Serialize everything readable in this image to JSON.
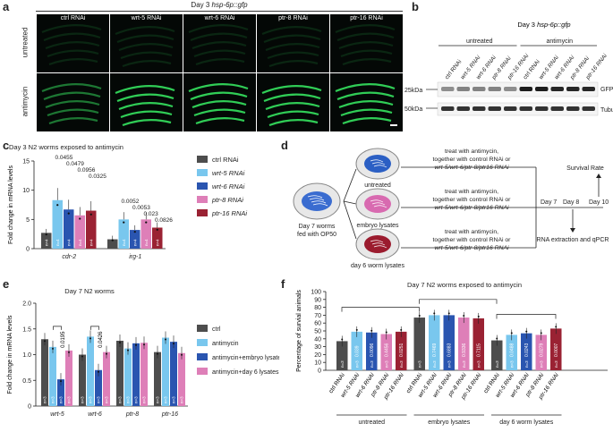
{
  "figure": {
    "panel_labels": [
      "a",
      "b",
      "c",
      "d",
      "e",
      "f"
    ]
  },
  "panel_a": {
    "title_prefix": "Day 3 ",
    "title_reporter": "hsp-6p::gfp",
    "columns": [
      "ctrl RNAi",
      "wrt-5 RNAi",
      "wrt-6 RNAi",
      "ptr-8 RNAi",
      "ptr-16 RNAi"
    ],
    "rows": [
      "untreated",
      "antimycin"
    ],
    "image_color": "#3cff6a"
  },
  "panel_b": {
    "title_prefix": "Day 3 ",
    "title_reporter": "hsp-6p::gfp",
    "groups": [
      "untreated",
      "antimycin"
    ],
    "lanes": [
      "ctrl RNAi",
      "wrt-5 RNAi",
      "wrt-6 RNAi",
      "ptr-8 RNAi",
      "ptr-16 RNAi",
      "ctrl RNAi",
      "wrt-5 RNAi",
      "wrt-6 RNAi",
      "ptr-8 RNAi",
      "ptr-16 RNAi"
    ],
    "markers": [
      "25kDa",
      "50kDa"
    ],
    "bands": [
      "GFP",
      "Tubulin"
    ],
    "gfp_intensity": [
      0.45,
      0.5,
      0.5,
      0.5,
      0.45,
      0.95,
      0.95,
      0.9,
      0.9,
      0.9
    ],
    "tubulin_intensity": [
      0.85,
      0.85,
      0.85,
      0.85,
      0.85,
      0.85,
      0.85,
      0.85,
      0.85,
      0.85
    ]
  },
  "panel_d": {
    "start": [
      "Day 7 worms",
      "fed with OP50"
    ],
    "conditions": [
      "untreated",
      "embryo lysates",
      "day 6 worm lysates"
    ],
    "dish_colors": [
      "#2b5fc4",
      "#d86ab0",
      "#9b1b2e"
    ],
    "treatments": [
      [
        "treat with antimycin,",
        "together with control RNAi or",
        "wrt-5/wrt-6/ptr-8/ptr16 RNAi"
      ],
      [
        "treat with antimycin,",
        "together with control RNAi or",
        "wrt-5/wrt-6/ptr-8/ptr16 RNAi"
      ],
      [
        "treat with antimycin,",
        "together with control RNAi or",
        "wrt-5/wrt-6/ptr-8/ptr16 RNAi"
      ]
    ],
    "timeline": [
      "Day 7",
      "Day 8",
      "Day 10"
    ],
    "outcomes": [
      "Survival Rate",
      "RNA extraction and qPCR"
    ]
  },
  "chart_data": [
    {
      "panel": "c",
      "type": "bar",
      "title": "Day 3 N2 worms exposed to antimycin",
      "ylabel": "Fold change in mRNA levels",
      "ylim": [
        0,
        15
      ],
      "yticks": [
        0,
        5,
        10,
        15
      ],
      "categories": [
        "cdr-2",
        "irg-1"
      ],
      "series": [
        {
          "name": "ctrl RNAi",
          "color": "#4d4d4d",
          "values": [
            2.7,
            1.6
          ],
          "n": [
            "n=4",
            ""
          ]
        },
        {
          "name": "wrt-5 RNAi",
          "color": "#79c7ee",
          "values": [
            8.3,
            5.0
          ],
          "n": [
            "n=4",
            "n=4"
          ]
        },
        {
          "name": "wrt-6 RNAi",
          "color": "#2a55b0",
          "values": [
            6.7,
            3.2
          ],
          "n": [
            "n=4",
            "n=4"
          ]
        },
        {
          "name": "ptr-8 RNAi",
          "color": "#de7fb8",
          "values": [
            5.7,
            5.0
          ],
          "n": [
            "n=4",
            "n=4"
          ]
        },
        {
          "name": "ptr-16 RNAi",
          "color": "#9a2233",
          "values": [
            6.5,
            3.6
          ],
          "n": [
            "n=4",
            "n=4"
          ]
        }
      ],
      "pvalues": [
        [
          "0.0455",
          "0.0479",
          "0.0956",
          "0.0325"
        ],
        [
          "0.0052",
          "0.0053",
          "0.023",
          "0.0826"
        ]
      ]
    },
    {
      "panel": "e",
      "type": "bar",
      "title": "Day 7 N2 worms",
      "ylabel": "Fold change in mRNA levels",
      "ylim": [
        0,
        2.0
      ],
      "yticks": [
        0,
        0.5,
        1.0,
        1.5,
        2.0
      ],
      "ytick_labels": [
        "0",
        "0.5",
        "1.0",
        "1.5",
        "2.0"
      ],
      "categories": [
        "wrt-5",
        "wrt-6",
        "ptr-8",
        "ptr-16"
      ],
      "series": [
        {
          "name": "ctrl",
          "color": "#4d4d4d",
          "values": [
            1.3,
            1.0,
            1.27,
            1.05
          ]
        },
        {
          "name": "antimycin",
          "color": "#79c7ee",
          "values": [
            1.15,
            1.35,
            1.12,
            1.33
          ]
        },
        {
          "name": "antimycin+embryo lysates",
          "color": "#2a55b0",
          "values": [
            0.52,
            0.7,
            1.22,
            1.25
          ]
        },
        {
          "name": "antimycin+day 6 lysates",
          "color": "#de7fb8",
          "values": [
            1.08,
            1.05,
            1.23,
            1.03
          ]
        }
      ],
      "n_label": "n=3",
      "pvalues": [
        "0.0195",
        "0.0426"
      ]
    },
    {
      "panel": "f",
      "type": "bar",
      "title": "Day 7 N2 worms exposed to antimycin",
      "ylabel": "Percentage of survial animals",
      "ylim": [
        0,
        100
      ],
      "yticks": [
        0,
        10,
        20,
        30,
        40,
        50,
        60,
        70,
        80,
        90,
        100
      ],
      "categories": [
        "ctrl RNAi",
        "wrt-5 RNAi",
        "wrt-6 RNAi",
        "ptr-8 RNAi",
        "ptr-16 RNAi",
        "ctrl RNAi",
        "wrt-5 RNAi",
        "wrt-6 RNAi",
        "ptr-8 RNAi",
        "ptr-16 RNAi",
        "ctrl RNAi",
        "wrt-5 RNAi",
        "wrt-6 RNAi",
        "ptr-8 RNAi",
        "ptr-16 RNAi"
      ],
      "values": [
        37,
        49,
        48,
        46,
        49,
        67,
        70,
        70,
        67,
        66,
        38,
        45,
        47,
        45,
        53
      ],
      "colors": [
        "#4d4d4d",
        "#79c7ee",
        "#2a55b0",
        "#de7fb8",
        "#9a2233",
        "#4d4d4d",
        "#79c7ee",
        "#2a55b0",
        "#de7fb8",
        "#9a2233",
        "#4d4d4d",
        "#79c7ee",
        "#2a55b0",
        "#de7fb8",
        "#9a2233"
      ],
      "groups": [
        "untreated",
        "embryo lysates",
        "day 6 worm lysates"
      ],
      "n_label": "n=3",
      "pvalues": [
        "0.039",
        "0.0096",
        "0.4456",
        "0.0251",
        "0.7469",
        "0.6883",
        "0.9336",
        "0.7115",
        "0.0488",
        "0.0243",
        "0.0279",
        "0.0007"
      ]
    }
  ]
}
